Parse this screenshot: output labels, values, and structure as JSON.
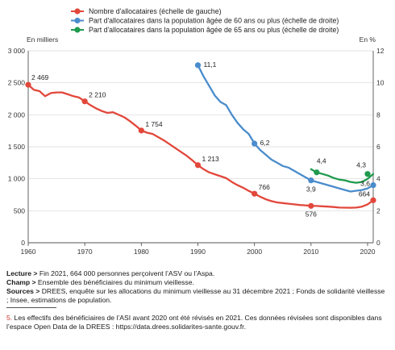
{
  "chart_data": {
    "type": "line",
    "legend_position": "top",
    "left_unit": "En milliers",
    "right_unit": "En %",
    "x_ticks": [
      1960,
      1970,
      1980,
      1990,
      2000,
      2010,
      2020
    ],
    "y_left_ticks": [
      "0",
      "500",
      "1 000",
      "1 500",
      "2 000",
      "2 500",
      "3 000"
    ],
    "y_right_ticks": [
      "0",
      "2",
      "4",
      "6",
      "8",
      "10",
      "12"
    ],
    "xlim": [
      1960,
      2021
    ],
    "ylim_left": [
      0,
      3000
    ],
    "ylim_right": [
      0,
      12
    ],
    "grid": "horizontal",
    "series": [
      {
        "name": "Nombre d'allocataires (échelle de gauche)",
        "axis": "left",
        "color": "#e2473b",
        "x": [
          1960,
          1961,
          1962,
          1963,
          1964,
          1965,
          1966,
          1967,
          1968,
          1969,
          1970,
          1971,
          1972,
          1973,
          1974,
          1975,
          1976,
          1977,
          1978,
          1979,
          1980,
          1981,
          1982,
          1983,
          1984,
          1985,
          1986,
          1987,
          1988,
          1989,
          1990,
          1991,
          1992,
          1993,
          1994,
          1995,
          1996,
          1997,
          1998,
          1999,
          2000,
          2001,
          2002,
          2003,
          2004,
          2005,
          2006,
          2007,
          2008,
          2009,
          2010,
          2011,
          2012,
          2013,
          2014,
          2015,
          2016,
          2017,
          2018,
          2019,
          2020,
          2021
        ],
        "values": [
          2469,
          2390,
          2370,
          2290,
          2340,
          2350,
          2350,
          2320,
          2290,
          2270,
          2210,
          2150,
          2100,
          2060,
          2030,
          2040,
          2000,
          1960,
          1900,
          1830,
          1754,
          1720,
          1700,
          1650,
          1600,
          1540,
          1480,
          1420,
          1360,
          1290,
          1213,
          1150,
          1100,
          1070,
          1040,
          1010,
          950,
          900,
          860,
          810,
          766,
          720,
          680,
          650,
          630,
          620,
          610,
          600,
          590,
          585,
          576,
          575,
          570,
          565,
          558,
          550,
          548,
          547,
          550,
          565,
          600,
          664
        ],
        "labels": [
          {
            "x": 1960,
            "value": 2469,
            "text": "2 469"
          },
          {
            "x": 1970,
            "value": 2210,
            "text": "2 210"
          },
          {
            "x": 1980,
            "value": 1754,
            "text": "1 754"
          },
          {
            "x": 1990,
            "value": 1213,
            "text": "1 213"
          },
          {
            "x": 2000,
            "value": 766,
            "text": "766"
          },
          {
            "x": 2010,
            "value": 576,
            "text": "576"
          },
          {
            "x": 2021,
            "value": 664,
            "text": "664"
          }
        ]
      },
      {
        "name": "Part d'allocataires dans la population âgée de 60 ans ou plus (échelle de droite)",
        "axis": "right",
        "color": "#4a8ccc",
        "x": [
          1990,
          1991,
          1992,
          1993,
          1994,
          1995,
          1996,
          1997,
          1998,
          1999,
          2000,
          2001,
          2002,
          2003,
          2004,
          2005,
          2006,
          2007,
          2008,
          2009,
          2010,
          2011,
          2012,
          2013,
          2014,
          2015,
          2016,
          2017,
          2018,
          2019,
          2020,
          2021
        ],
        "values": [
          11.1,
          10.4,
          9.8,
          9.2,
          8.8,
          8.6,
          8.0,
          7.5,
          7.1,
          6.8,
          6.2,
          5.8,
          5.5,
          5.2,
          5.0,
          4.8,
          4.7,
          4.5,
          4.3,
          4.1,
          3.9,
          3.8,
          3.7,
          3.6,
          3.5,
          3.4,
          3.3,
          3.2,
          3.25,
          3.3,
          3.4,
          3.6
        ],
        "labels": [
          {
            "x": 1990,
            "value": 11.1,
            "text": "11,1"
          },
          {
            "x": 2000,
            "value": 6.2,
            "text": "6,2"
          },
          {
            "x": 2010,
            "value": 3.9,
            "text": "3,9"
          },
          {
            "x": 2021,
            "value": 3.6,
            "text": "3,6"
          }
        ]
      },
      {
        "name": "Part d'allocataires dans la population âgée de 65 ans ou plus (échelle de droite)",
        "axis": "right",
        "color": "#1f9a4e",
        "x": [
          2010,
          2011,
          2012,
          2013,
          2014,
          2015,
          2016,
          2017,
          2018,
          2019,
          2020,
          2021
        ],
        "values": [
          4.6,
          4.4,
          4.3,
          4.2,
          4.05,
          3.95,
          3.9,
          3.8,
          3.75,
          3.8,
          4.0,
          4.3
        ],
        "labels": [
          {
            "x": 2011,
            "value": 4.4,
            "text": "4,4"
          },
          {
            "x": 2020,
            "value": 4.3,
            "text": "4,3"
          }
        ]
      }
    ]
  },
  "notes": {
    "lecture_label": "Lecture >",
    "lecture_text": " Fin 2021, 664 000 personnes perçoivent l’ASV ou l’Aspa.",
    "champ_label": "Champ >",
    "champ_text": " Ensemble des bénéficiaires du minimum vieillesse.",
    "sources_label": "Sources >",
    "sources_text": " DREES, enquête sur les allocations du minimum vieillesse au 31 décembre 2021 ; Fonds de solidarité vieillesse ; Insee, estimations de population."
  },
  "footnote": {
    "number": "5.",
    "text": " Les effectifs des bénéficiaires de l’ASI avant 2020 ont été révisés en 2021. Ces données révisées sont disponibles dans l’espace Open Data de la DREES : https://data.drees.solidarites-sante.gouv.fr."
  }
}
